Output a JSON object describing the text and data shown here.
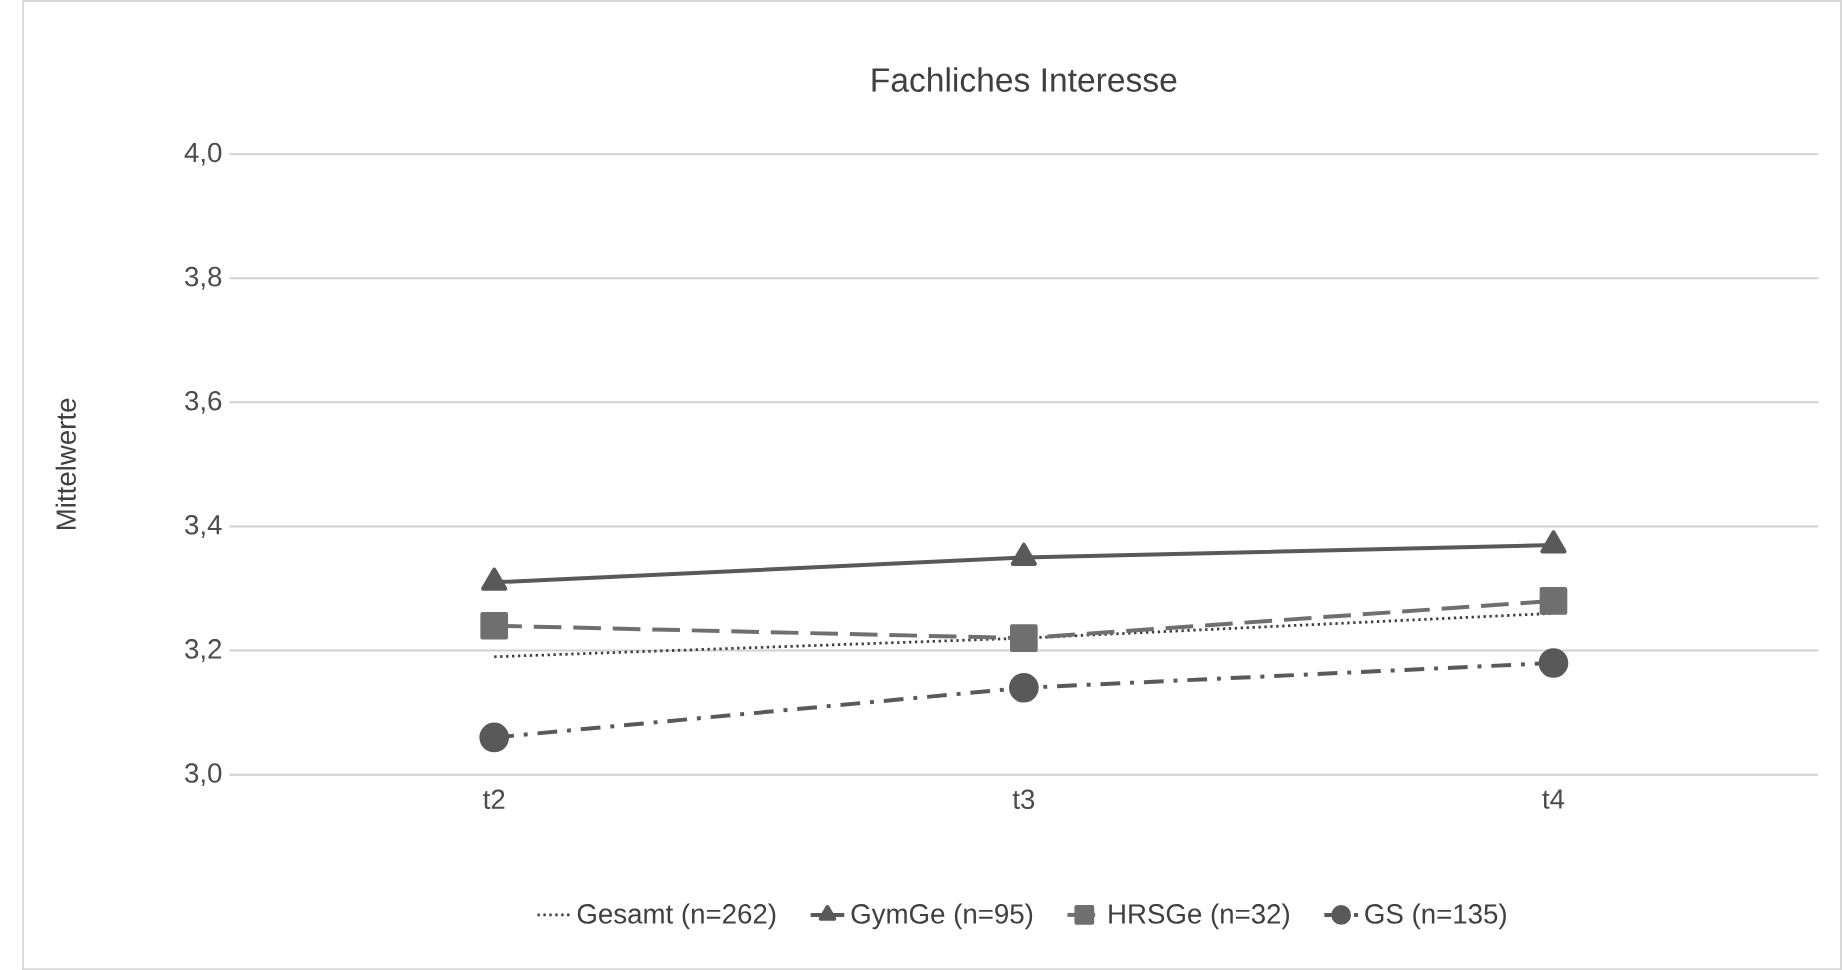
{
  "chart_data": {
    "type": "line",
    "title": "Fachliches Interesse",
    "ylabel": "Mittelwerte",
    "categories": [
      "t2",
      "t3",
      "t4"
    ],
    "series": [
      {
        "name": "Gesamt (n=262)",
        "color": "#404040",
        "values": [
          3.19,
          3.22,
          3.26
        ],
        "marker": "none",
        "line_style": "dotted"
      },
      {
        "name": "GymGe (n=95)",
        "color": "#595959",
        "values": [
          3.31,
          3.35,
          3.37
        ],
        "marker": "triangle",
        "line_style": "solid"
      },
      {
        "name": "HRSGe (n=32)",
        "color": "#6f6f6f",
        "values": [
          3.24,
          3.22,
          3.28
        ],
        "marker": "square",
        "line_style": "dashed"
      },
      {
        "name": "GS (n=135)",
        "color": "#595959",
        "values": [
          3.06,
          3.14,
          3.18
        ],
        "marker": "circle",
        "line_style": "dashdot"
      }
    ],
    "ylim": [
      3.0,
      4.0
    ],
    "yticks": [
      {
        "value": 3.0,
        "label": "3,0"
      },
      {
        "value": 3.2,
        "label": "3,2"
      },
      {
        "value": 3.4,
        "label": "3,4"
      },
      {
        "value": 3.6,
        "label": "3,6"
      },
      {
        "value": 3.8,
        "label": "3,8"
      },
      {
        "value": 4.0,
        "label": "4,0"
      }
    ],
    "grid": "y",
    "legend": "bottom"
  }
}
